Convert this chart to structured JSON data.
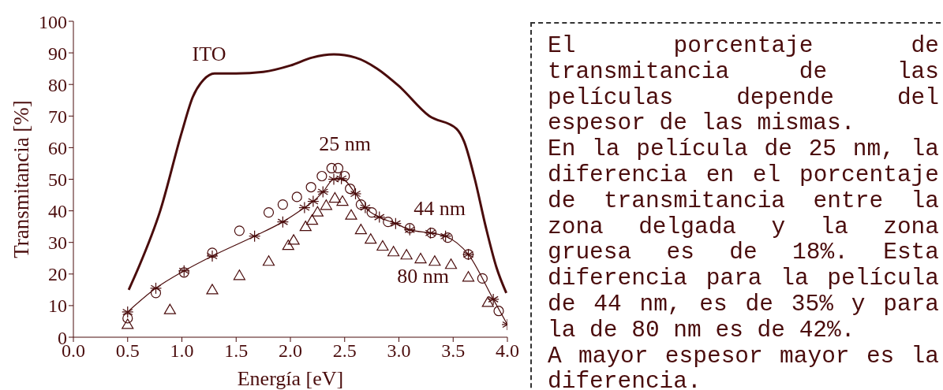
{
  "chart_data": [
    {
      "type": "scatter",
      "xlabel": "Energía [eV]",
      "ylabel": "Transmitancia [%]",
      "xlim": [
        0,
        4
      ],
      "ylim": [
        0,
        100
      ],
      "xticks": [
        {
          "value": 0,
          "label": "0.0"
        },
        {
          "value": 0.5,
          "label": "0.5"
        },
        {
          "value": 1,
          "label": "1.0"
        },
        {
          "value": 1.5,
          "label": "1.5"
        },
        {
          "value": 2,
          "label": "2.0"
        },
        {
          "value": 2.5,
          "label": "2.5"
        },
        {
          "value": 3,
          "label": "3.0"
        },
        {
          "value": 3.5,
          "label": "3.5"
        },
        {
          "value": 4,
          "label": "4.0"
        }
      ],
      "yticks": [
        0,
        10,
        20,
        30,
        40,
        50,
        60,
        70,
        80,
        90,
        100
      ],
      "series": [
        {
          "type": "line",
          "marker": "none",
          "color": "#4a0c0c",
          "x": [
            0.51,
            0.6,
            0.8,
            1.0,
            1.1,
            1.2,
            1.3,
            1.5,
            1.75,
            2.0,
            2.2,
            2.4,
            2.6,
            2.8,
            3.0,
            3.28,
            3.53,
            3.6,
            3.7,
            3.8,
            3.9,
            3.99
          ],
          "values": [
            15,
            22,
            40,
            65,
            76,
            81.5,
            83.5,
            83.5,
            84,
            86,
            88.5,
            89.5,
            88.5,
            85,
            79.5,
            70,
            66,
            62,
            50,
            35,
            22,
            14
          ]
        },
        {
          "type": "scatter",
          "marker": "circle",
          "color": "#4a0c0c",
          "x": [
            0.5,
            0.76,
            1.02,
            1.28,
            1.53,
            1.8,
            1.93,
            2.06,
            2.19,
            2.29,
            2.38,
            2.44,
            2.5,
            2.55,
            2.65,
            2.75,
            2.9,
            3.1,
            3.3,
            3.45,
            3.64,
            3.77,
            3.92
          ],
          "values": [
            6,
            14,
            20.5,
            26.7,
            33.7,
            39.5,
            42,
            44.4,
            47.5,
            51,
            53.5,
            53.5,
            51,
            47,
            42,
            39.5,
            36.5,
            34.5,
            33,
            31.5,
            26.2,
            18.6,
            8.3
          ]
        },
        {
          "type": "line",
          "marker": "cross",
          "color": "#4a0c0c",
          "x": [
            0.5,
            0.76,
            1.02,
            1.28,
            1.67,
            1.93,
            2.13,
            2.21,
            2.3,
            2.4,
            2.47,
            2.6,
            2.69,
            2.82,
            2.97,
            3.1,
            3.29,
            3.43,
            3.64,
            3.87,
            4.0
          ],
          "values": [
            8,
            15.5,
            21,
            25.7,
            32,
            36.5,
            41,
            43,
            46,
            50,
            50.2,
            45.4,
            41,
            38,
            36,
            34,
            33,
            32,
            26.2,
            12,
            4
          ]
        },
        {
          "type": "scatter",
          "marker": "triangle",
          "color": "#4a0c0c",
          "x": [
            0.5,
            0.89,
            1.28,
            1.53,
            1.8,
            1.98,
            2.03,
            2.14,
            2.2,
            2.25,
            2.33,
            2.41,
            2.48,
            2.56,
            2.65,
            2.74,
            2.85,
            2.95,
            3.07,
            3.2,
            3.33,
            3.48,
            3.64,
            3.82
          ],
          "values": [
            4,
            8.7,
            15,
            19.5,
            24,
            29,
            30.7,
            35,
            37,
            39.6,
            41.7,
            44,
            43,
            38.6,
            34,
            31,
            28.8,
            27,
            26,
            24.8,
            24,
            23,
            19,
            11
          ]
        }
      ],
      "annotations": [
        "ITO",
        "25 nm",
        "44 nm",
        "80 nm"
      ]
    },
    {
      "type": "other",
      "annotations": [
        "El porcentaje de transmitancia de las películas depende del espesor de las mismas.",
        "En la película de 25 nm, la diferencia en el porcentaje de transmitancia entre la zona delgada y la zona gruesa es de 18%. Esta diferencia para la película de 44 nm, es de 35% y para la de 80 nm es de 42%.",
        "A mayor espesor mayor es la diferencia."
      ]
    }
  ]
}
